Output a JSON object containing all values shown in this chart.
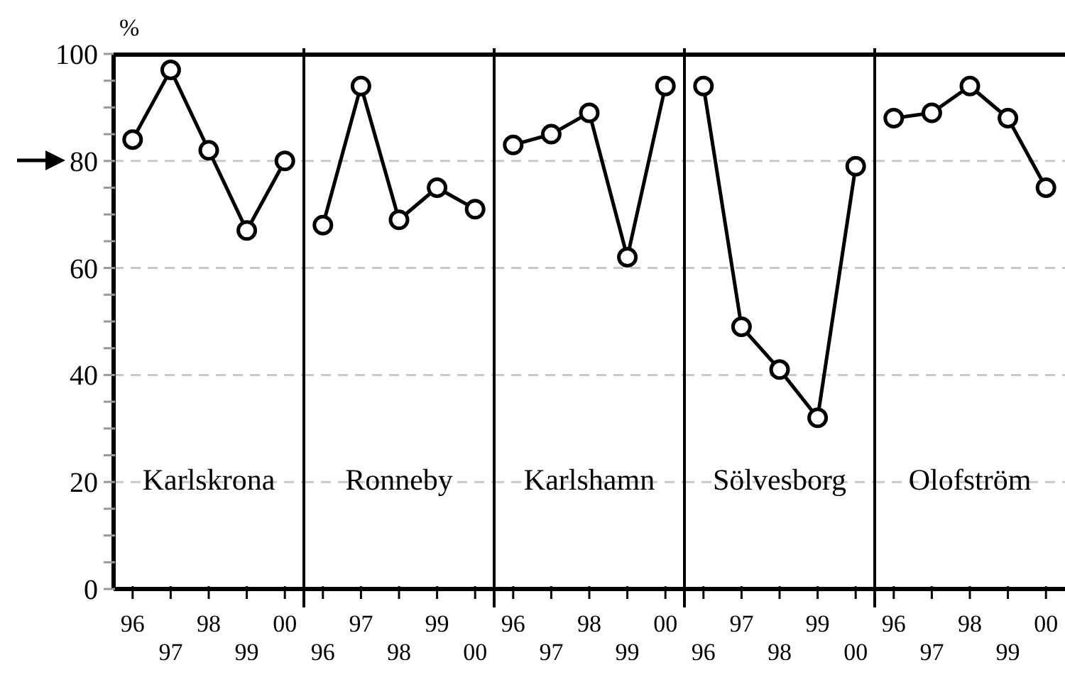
{
  "chart_data": [
    {
      "type": "line",
      "title": "Karlskrona",
      "ylabel": "%",
      "categories": [
        "96",
        "97",
        "98",
        "99",
        "00"
      ],
      "series": [
        {
          "color": "#000000",
          "values": [
            84,
            97,
            82,
            67,
            80
          ]
        }
      ],
      "ylim": [
        0,
        100
      ],
      "yticks": [
        0,
        {
          "value": 5,
          "label": null
        },
        {
          "value": 10,
          "label": null
        },
        {
          "value": 15,
          "label": null
        },
        20,
        {
          "value": 25,
          "label": null
        },
        {
          "value": 30,
          "label": null
        },
        {
          "value": 35,
          "label": null
        },
        40,
        {
          "value": 45,
          "label": null
        },
        {
          "value": 50,
          "label": null
        },
        {
          "value": 55,
          "label": null
        },
        60,
        {
          "value": 65,
          "label": null
        },
        {
          "value": 70,
          "label": null
        },
        {
          "value": 75,
          "label": null
        },
        80,
        {
          "value": 85,
          "label": null
        },
        {
          "value": 90,
          "label": null
        },
        {
          "value": 95,
          "label": null
        },
        100
      ],
      "grid": "y",
      "marker": "circle",
      "line_style": "solid"
    },
    {
      "type": "line",
      "title": "Ronneby",
      "categories": [
        "96",
        "97",
        "98",
        "99",
        "00"
      ],
      "series": [
        {
          "color": "#000000",
          "values": [
            68,
            94,
            69,
            75,
            71
          ]
        }
      ],
      "ylim": [
        0,
        100
      ],
      "grid": "y",
      "marker": "circle",
      "line_style": "solid",
      "tick_labels": "x"
    },
    {
      "type": "line",
      "title": "Karlshamn",
      "categories": [
        "96",
        "97",
        "98",
        "99",
        "00"
      ],
      "series": [
        {
          "color": "#000000",
          "values": [
            83,
            85,
            89,
            62,
            94
          ]
        }
      ],
      "ylim": [
        0,
        100
      ],
      "grid": "y",
      "marker": "circle",
      "line_style": "solid",
      "tick_labels": "x"
    },
    {
      "type": "line",
      "title": "Sölvesborg",
      "categories": [
        "96",
        "97",
        "98",
        "99",
        "00"
      ],
      "series": [
        {
          "color": "#000000",
          "values": [
            94,
            49,
            41,
            32,
            79
          ]
        }
      ],
      "ylim": [
        0,
        100
      ],
      "grid": "y",
      "marker": "circle",
      "line_style": "solid",
      "tick_labels": "x"
    },
    {
      "type": "line",
      "title": "Olofström",
      "categories": [
        "96",
        "97",
        "98",
        "99",
        "00"
      ],
      "series": [
        {
          "color": "#000000",
          "values": [
            88,
            89,
            94,
            88,
            75
          ]
        }
      ],
      "ylim": [
        0,
        100
      ],
      "grid": "y",
      "marker": "circle",
      "line_style": "solid",
      "tick_labels": "x"
    }
  ]
}
